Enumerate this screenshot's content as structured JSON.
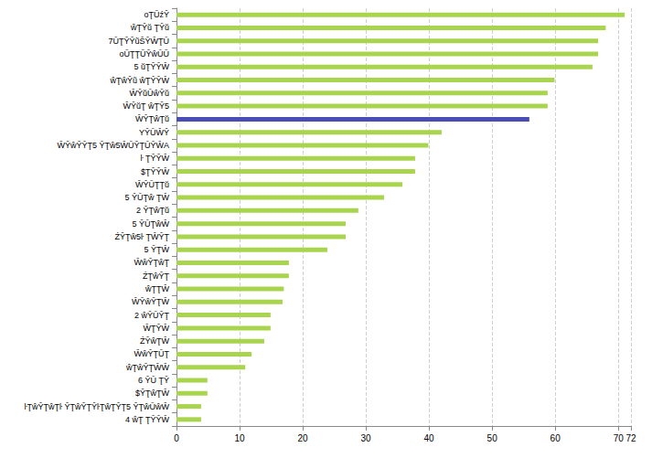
{
  "chart_data": {
    "type": "bar",
    "orientation": "horizontal",
    "grid": true,
    "categories": [
      "oŢŨźŶ",
      "ŵŢŶŭ ŢŶŭ",
      "7ŬŢŶŶũŜŶŴŢŬ",
      "oŬŢŢŨŶŵŬŨ",
      "5 ŭŢŶŶŴ",
      "ŵŢŵŶũ ŵŢŶŶŴ",
      "ŴŶŭŬŵŶŭ",
      "ŴŶŭŢ ŵŢŶ5",
      "ŴŶŢŵŢŭ",
      "YŶŬŴŶ",
      "ŴŶŵŶŶŢ5 ŶŢŵ5ŴŬŶŢŬŶŴA",
      "ŀ ŢŶŶŴ",
      "$ŢŶŶŴ",
      "ŴŶŬŢŢŭ",
      "5 ŶŬŢŵ ŢŴ",
      "2 ŶŢŵŢŭ",
      "5 ŶŬŢŵŴ",
      "ŹŶŢŵ5ŀ ŢŴŶŢ",
      "5 ŶŢŴ",
      "ŴŵŶŢŵŢ",
      "ŹŢŵŶŢ",
      "ŵŢŢŴ",
      "ŴŶŵŶŢŴ",
      "2 ŵŶŬŶŢ",
      "ŴŢŶŴ",
      "ŹŶŵŢŴ",
      "ŴŵŶŢŬŢ",
      "ŵŢŵŶŢŴŴ",
      "6 ŶŬ ŢŶ",
      "$ŶŢŵŢŴ",
      "ŀŢŵŶŢŵŢŀ ŶŢŵŶŢŶŀŢŵŢŶŢ5 ŶŢŵŬŵŴ",
      "4 ŵŢ ŢŶŶŴ"
    ],
    "values": [
      71.0,
      68.0,
      66.8,
      66.8,
      65.9,
      59.9,
      58.8,
      58.8,
      55.9,
      42.0,
      39.9,
      37.8,
      37.8,
      35.8,
      32.9,
      28.8,
      26.8,
      26.8,
      23.9,
      17.8,
      17.8,
      17.0,
      16.8,
      14.9,
      14.9,
      13.9,
      11.9,
      10.9,
      4.9,
      4.9,
      3.9,
      3.9
    ],
    "colors": [
      "#a8d44e",
      "#a8d44e",
      "#a8d44e",
      "#a8d44e",
      "#a8d44e",
      "#a8d44e",
      "#a8d44e",
      "#a8d44e",
      "#4a4db5",
      "#a8d44e",
      "#a8d44e",
      "#a8d44e",
      "#a8d44e",
      "#a8d44e",
      "#a8d44e",
      "#a8d44e",
      "#a8d44e",
      "#a8d44e",
      "#a8d44e",
      "#a8d44e",
      "#a8d44e",
      "#a8d44e",
      "#a8d44e",
      "#a8d44e",
      "#a8d44e",
      "#a8d44e",
      "#a8d44e",
      "#a8d44e",
      "#a8d44e",
      "#a8d44e",
      "#a8d44e",
      "#a8d44e"
    ],
    "xlim": [
      0,
      72
    ],
    "xticks": [
      0,
      10,
      20,
      30,
      40,
      50,
      60,
      70
    ]
  }
}
